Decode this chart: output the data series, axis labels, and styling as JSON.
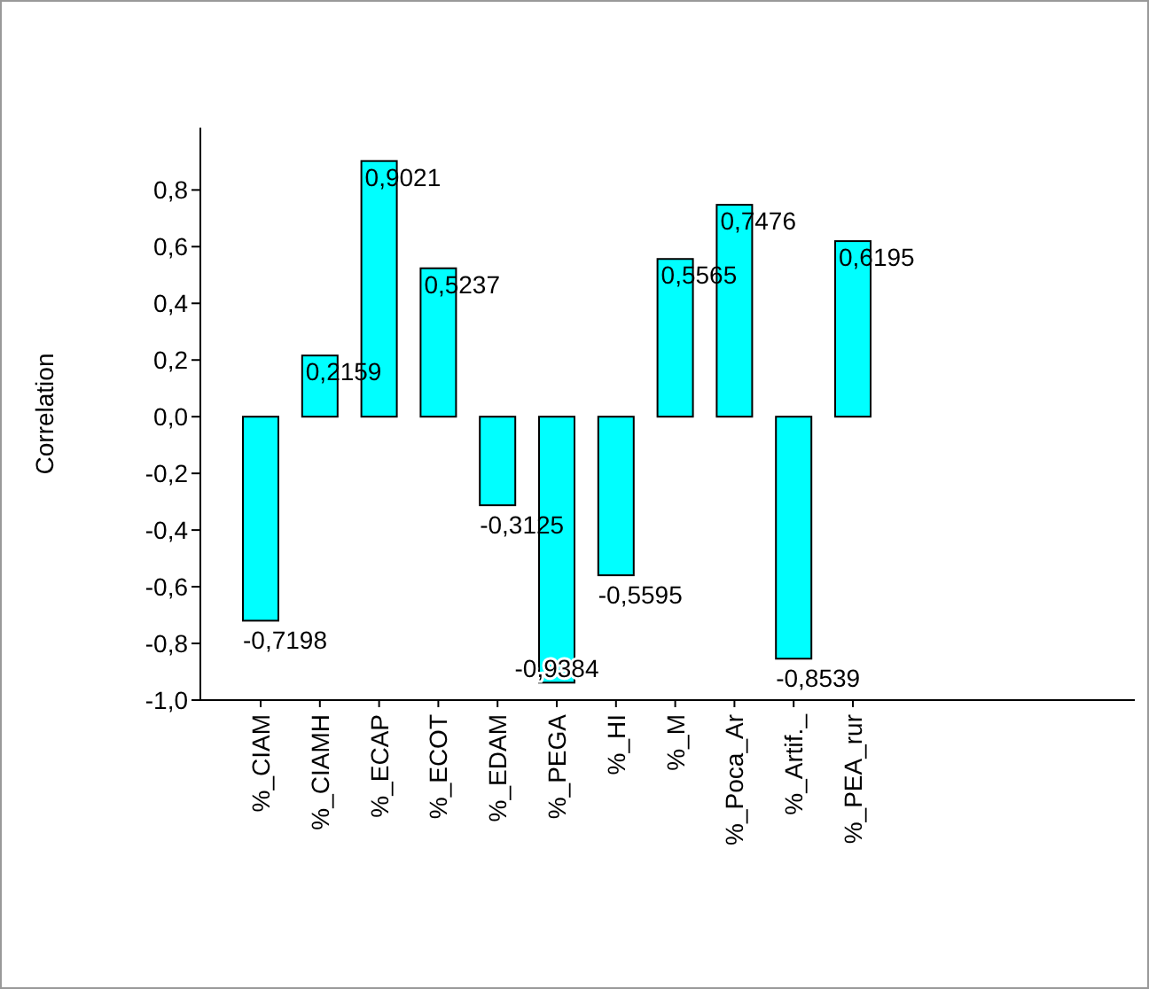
{
  "chart_data": {
    "type": "bar",
    "ylabel": "Correlation",
    "categories": [
      "%_CIAM",
      "%_CIAMH",
      "%_ECAP",
      "%_ECOT",
      "%_EDAM",
      "%_PEGA",
      "%_HI",
      "%_M",
      "%_Poca_Ar",
      "%_Artif._",
      "%_PEA_rur"
    ],
    "values": [
      -0.7198,
      0.2159,
      0.9021,
      0.5237,
      -0.3125,
      -0.9384,
      -0.5595,
      0.5565,
      0.7476,
      -0.8539,
      0.6195
    ],
    "value_labels": [
      "-0,7198",
      "0,2159",
      "0,9021",
      "0,5237",
      "-0,3125",
      "-0,9384",
      "-0,5595",
      "0,5565",
      "0,7476",
      "-0,8539",
      "0,6195"
    ],
    "color": "#00ffff",
    "ylim": [
      -1,
      1.02
    ],
    "yticks": [
      {
        "value": -1,
        "label": "-1,0"
      },
      {
        "value": -0.8,
        "label": "-0,8"
      },
      {
        "value": -0.6,
        "label": "-0,6"
      },
      {
        "value": -0.4,
        "label": "-0,4"
      },
      {
        "value": -0.2,
        "label": "-0,2"
      },
      {
        "value": 0,
        "label": "0,0"
      },
      {
        "value": 0.2,
        "label": "0,2"
      },
      {
        "value": 0.4,
        "label": "0,4"
      },
      {
        "value": 0.6,
        "label": "0,6"
      },
      {
        "value": 0.8,
        "label": "0,8"
      }
    ],
    "grid": false
  }
}
